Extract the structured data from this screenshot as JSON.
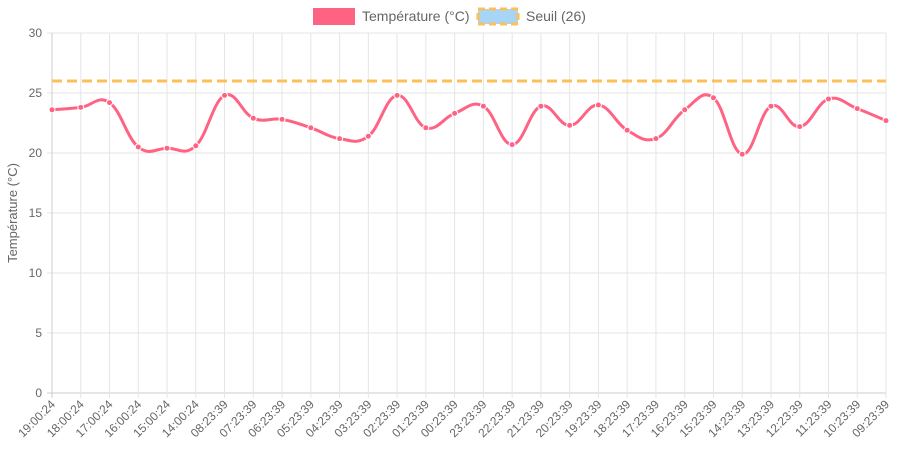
{
  "chart_data": {
    "type": "line",
    "title": "",
    "xlabel": "",
    "ylabel": "Température (°C)",
    "ylim": [
      0,
      30
    ],
    "yticks": [
      0,
      5,
      10,
      15,
      20,
      25,
      30
    ],
    "grid": true,
    "legend_position": "top",
    "categories": [
      "19:00:24",
      "18:00:24",
      "17:00:24",
      "16:00:24",
      "15:00:24",
      "14:00:24",
      "08:23:39",
      "07:23:39",
      "06:23:39",
      "05:23:39",
      "04:23:39",
      "03:23:39",
      "02:23:39",
      "01:23:39",
      "00:23:39",
      "23:23:39",
      "22:23:39",
      "21:23:39",
      "20:23:39",
      "19:23:39",
      "18:23:39",
      "17:23:39",
      "16:23:39",
      "15:23:39",
      "14:23:39",
      "13:23:39",
      "12:23:39",
      "11:23:39",
      "10:23:39",
      "09:23:39"
    ],
    "series": [
      {
        "name": "Température (°C)",
        "color": "#ff6384",
        "values": [
          23.6,
          23.8,
          24.2,
          20.5,
          20.4,
          20.6,
          24.8,
          22.9,
          22.8,
          22.1,
          21.2,
          21.4,
          24.8,
          22.1,
          23.3,
          23.9,
          20.7,
          23.9,
          22.3,
          24.0,
          21.9,
          21.2,
          23.6,
          24.6,
          19.9,
          23.9,
          22.2,
          24.5,
          23.7,
          22.7
        ]
      },
      {
        "name": "Seuil (26)",
        "color": "#ffbf58",
        "fill": "#a8d5f5",
        "dashed": true,
        "value": 26
      }
    ]
  }
}
